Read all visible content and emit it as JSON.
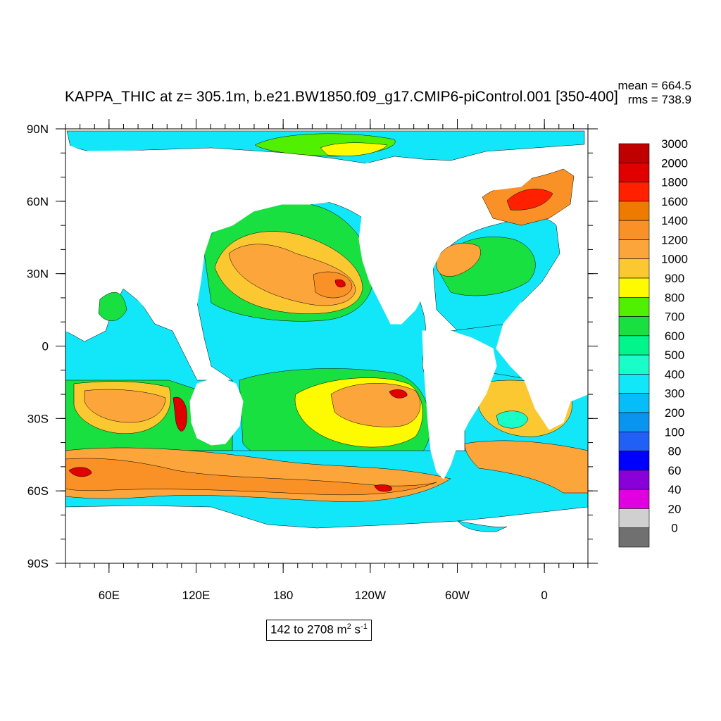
{
  "title": "KAPPA_THIC at z= 305.1m, b.e21.BW1850.f09_g17.CMIP6-piControl.001 [350-400]",
  "stats": {
    "mean": "mean = 664.5",
    "rms": "rms = 738.9"
  },
  "range": {
    "text": "142 to 2708 m",
    "unit_a": "2",
    "unit_mid": " s",
    "unit_b": "-1"
  },
  "axes": {
    "lat_labels": [
      {
        "label": "90N",
        "lat": 90
      },
      {
        "label": "60N",
        "lat": 60
      },
      {
        "label": "30N",
        "lat": 30
      },
      {
        "label": "0",
        "lat": 0
      },
      {
        "label": "30S",
        "lat": -30
      },
      {
        "label": "60S",
        "lat": -60
      },
      {
        "label": "90S",
        "lat": -90
      }
    ],
    "lon_labels": [
      {
        "label": "60E",
        "lon": 60
      },
      {
        "label": "120E",
        "lon": 120
      },
      {
        "label": "180",
        "lon": 180
      },
      {
        "label": "120W",
        "lon": 240
      },
      {
        "label": "60W",
        "lon": 300
      },
      {
        "label": "0",
        "lon": 360
      }
    ],
    "lon_range": [
      30,
      390
    ],
    "lat_range": [
      -90,
      90
    ]
  },
  "colorbar": {
    "labels": [
      "3000",
      "2000",
      "1800",
      "1600",
      "1400",
      "1200",
      "1000",
      "900",
      "800",
      "700",
      "600",
      "500",
      "400",
      "300",
      "200",
      "100",
      "80",
      "60",
      "40",
      "20",
      "0"
    ],
    "colors": [
      "#c00000",
      "#e00000",
      "#ff2000",
      "#ee7a00",
      "#f99126",
      "#fba53a",
      "#fcc832",
      "#fefb00",
      "#50f000",
      "#17e040",
      "#00f68a",
      "#19fec8",
      "#12e7f9",
      "#05bdf8",
      "#0a94f0",
      "#2060f5",
      "#0000ff",
      "#8a00d8",
      "#e000e0",
      "#d0d0d0",
      "#707070"
    ]
  }
}
